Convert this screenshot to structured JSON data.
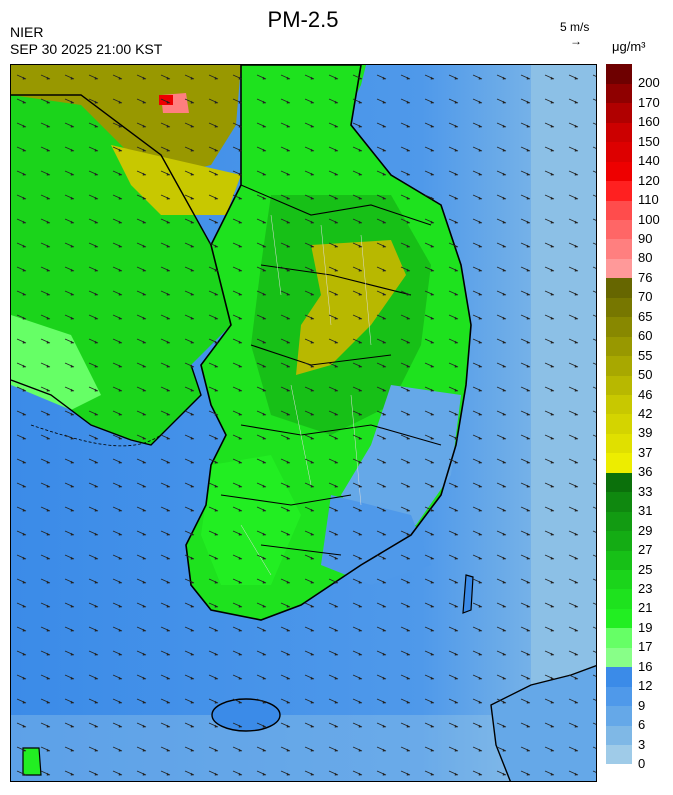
{
  "header": {
    "title": "PM-2.5",
    "agency": "NIER",
    "timestamp": "SEP 30 2025 21:00 KST",
    "vector_scale_label": "5 m/s",
    "unit": "μg/m³"
  },
  "legend": {
    "boundaries": [
      "0",
      "3",
      "6",
      "9",
      "12",
      "16",
      "17",
      "19",
      "21",
      "23",
      "25",
      "27",
      "29",
      "31",
      "33",
      "36",
      "37",
      "39",
      "42",
      "46",
      "50",
      "55",
      "60",
      "65",
      "70",
      "76",
      "80",
      "90",
      "100",
      "110",
      "120",
      "140",
      "150",
      "160",
      "170",
      "200"
    ],
    "colors": [
      "#9fcbe8",
      "#7fb8e6",
      "#65a8e8",
      "#4f99ea",
      "#3b8be8",
      "#88ff88",
      "#66ff66",
      "#22ee22",
      "#1ee21e",
      "#1bd41b",
      "#17c017",
      "#14ac14",
      "#129b12",
      "#0f880f",
      "#0b700b",
      "#eded00",
      "#e0e000",
      "#d4d400",
      "#c8c800",
      "#b8b800",
      "#a8a800",
      "#989800",
      "#888800",
      "#777700",
      "#666600",
      "#ff9999",
      "#ff7f7f",
      "#ff6666",
      "#ff4c4c",
      "#ff2020",
      "#ee0000",
      "#dd0000",
      "#cc0000",
      "#b00000",
      "#8f0000",
      "#6e0000"
    ]
  },
  "map": {
    "wind_direction": "northwesterly",
    "overlays": [
      "coastlines",
      "province boundaries",
      "district boundaries",
      "wind vectors"
    ]
  }
}
